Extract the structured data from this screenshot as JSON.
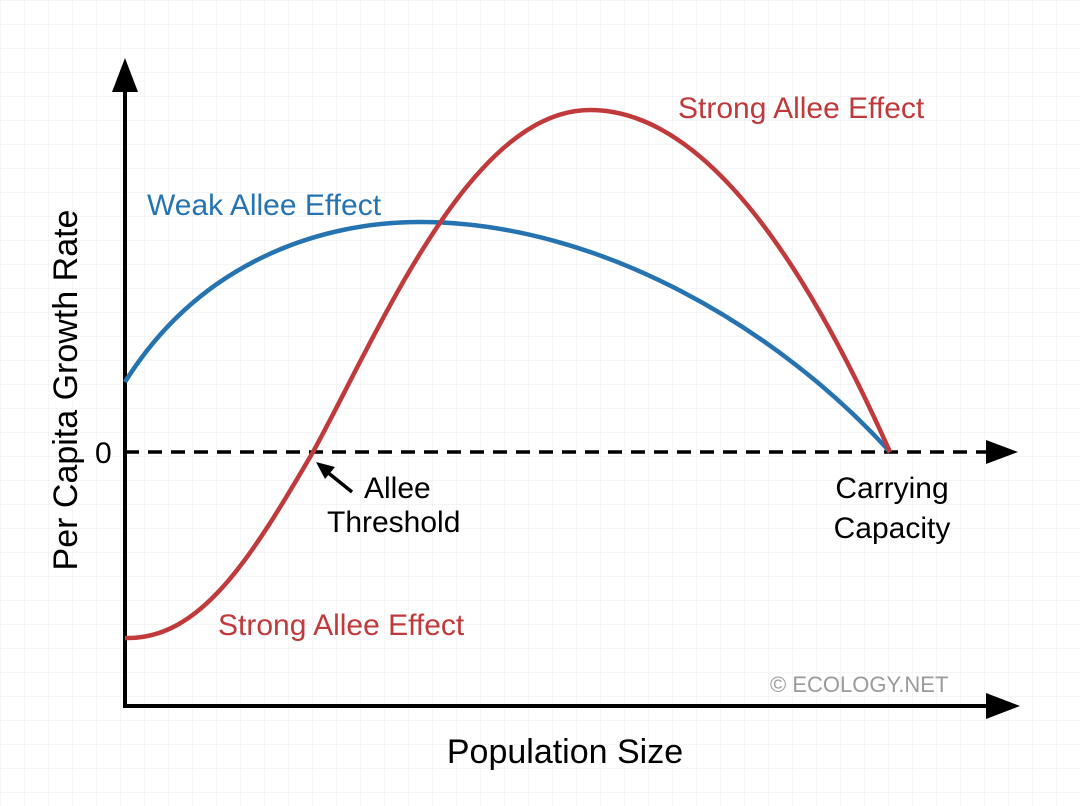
{
  "title": "",
  "axes": {
    "x_label": "Population Size",
    "y_label": "Per Capita Growth Rate",
    "zero_label": "0"
  },
  "series": {
    "weak": {
      "label": "Weak Allee Effect",
      "color": "#2573b0"
    },
    "strong_upper_label": "Strong Allee Effect",
    "strong_lower_label": "Strong Allee Effect",
    "strong_color": "#c0393b"
  },
  "annotations": {
    "threshold_line1": "Allee",
    "threshold_line2": "Threshold",
    "capacity_line1": "Carrying",
    "capacity_line2": "Capacity"
  },
  "watermark": "© ECOLOGY.NET",
  "colors": {
    "grid": "#ebebeb",
    "axis": "#000000",
    "watermark": "#9a9a9a"
  }
}
